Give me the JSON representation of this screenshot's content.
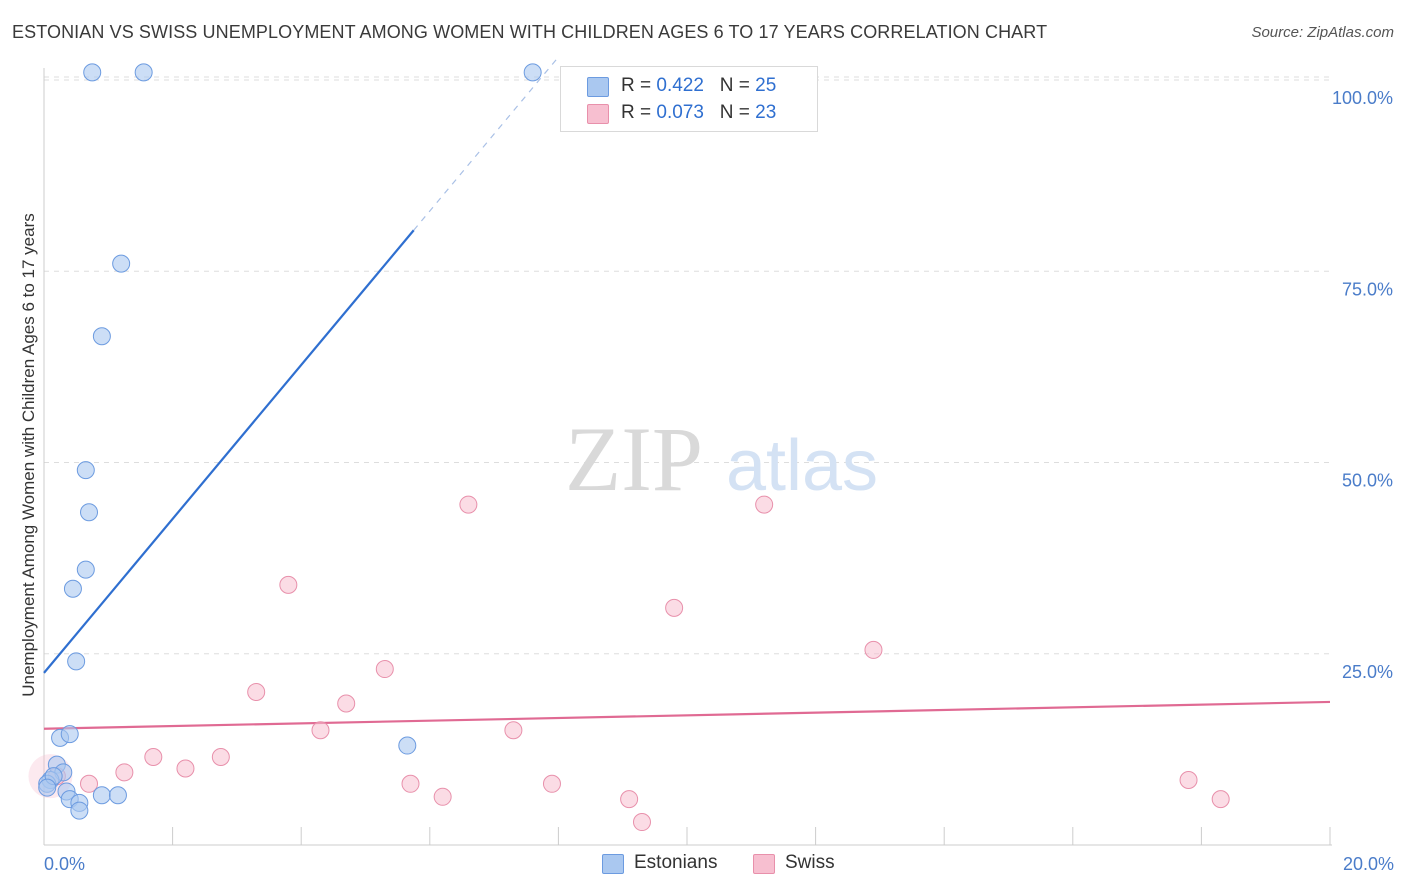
{
  "header": {
    "title": "ESTONIAN VS SWISS UNEMPLOYMENT AMONG WOMEN WITH CHILDREN AGES 6 TO 17 YEARS CORRELATION CHART",
    "source": "Source: ZipAtlas.com"
  },
  "watermark": {
    "zip": "ZIP",
    "atlas": "atlas"
  },
  "legend": {
    "estonians": {
      "r_label": "R = ",
      "r_value": "0.422",
      "n_label": "N = ",
      "n_value": "25"
    },
    "swiss": {
      "r_label": "R = ",
      "r_value": "0.073",
      "n_label": "N = ",
      "n_value": "23"
    }
  },
  "bottom_legend": {
    "estonians": "Estonians",
    "swiss": "Swiss"
  },
  "colors": {
    "estonians_fill": "#aac8f0",
    "estonians_stroke": "#6c9be0",
    "estonians_line": "#2f6fd0",
    "swiss_fill": "#f7bfd0",
    "swiss_stroke": "#e890ab",
    "swiss_line": "#e06a93",
    "tick_text": "#4a7cc9",
    "grid": "#dddddd"
  },
  "chart_data": {
    "type": "scatter",
    "title": "ESTONIAN VS SWISS UNEMPLOYMENT AMONG WOMEN WITH CHILDREN AGES 6 TO 17 YEARS CORRELATION CHART",
    "xlabel": "",
    "ylabel": "Unemployment Among Women with Children Ages 6 to 17 years",
    "xlim": [
      0,
      20
    ],
    "ylim": [
      0,
      105
    ],
    "x_tick_labels": [
      "0.0%",
      "20.0%"
    ],
    "y_ticks": [
      25,
      50,
      75,
      100
    ],
    "y_tick_labels": [
      "25.0%",
      "50.0%",
      "75.0%",
      "100.0%"
    ],
    "series": [
      {
        "name": "Estonians",
        "r": 0.422,
        "n": 25,
        "points": [
          [
            0.75,
            101
          ],
          [
            1.55,
            101
          ],
          [
            7.6,
            101
          ],
          [
            1.2,
            76
          ],
          [
            0.9,
            66.5
          ],
          [
            0.65,
            49
          ],
          [
            0.7,
            43.5
          ],
          [
            0.65,
            36
          ],
          [
            0.45,
            33.5
          ],
          [
            0.5,
            24
          ],
          [
            0.25,
            14
          ],
          [
            0.4,
            14.5
          ],
          [
            5.65,
            13
          ],
          [
            0.2,
            10.5
          ],
          [
            0.3,
            9.5
          ],
          [
            0.1,
            8.5
          ],
          [
            0.05,
            8
          ],
          [
            0.15,
            9
          ],
          [
            0.35,
            7
          ],
          [
            0.4,
            6
          ],
          [
            0.9,
            6.5
          ],
          [
            1.15,
            6.5
          ],
          [
            0.55,
            5.5
          ],
          [
            0.55,
            4.5
          ],
          [
            0.05,
            7.5
          ]
        ],
        "trend": {
          "x": [
            0,
            8
          ],
          "y": [
            22.5,
            103
          ],
          "dashed_from_x": 8.05
        }
      },
      {
        "name": "Swiss",
        "r": 0.073,
        "n": 23,
        "points": [
          [
            6.6,
            44.5
          ],
          [
            11.2,
            44.5
          ],
          [
            3.8,
            34
          ],
          [
            9.8,
            31
          ],
          [
            12.9,
            25.5
          ],
          [
            3.3,
            20
          ],
          [
            5.3,
            23
          ],
          [
            4.7,
            18.5
          ],
          [
            4.3,
            15
          ],
          [
            7.3,
            15
          ],
          [
            1.7,
            11.5
          ],
          [
            2.75,
            11.5
          ],
          [
            2.2,
            10
          ],
          [
            1.25,
            9.5
          ],
          [
            0.7,
            8
          ],
          [
            5.7,
            8
          ],
          [
            7.9,
            8
          ],
          [
            17.8,
            8.5
          ],
          [
            6.2,
            6.3
          ],
          [
            9.1,
            6
          ],
          [
            18.3,
            6
          ],
          [
            9.3,
            3
          ],
          [
            0.2,
            9
          ]
        ],
        "trend": {
          "x": [
            0,
            20
          ],
          "y": [
            15.2,
            18.7
          ]
        }
      }
    ]
  }
}
